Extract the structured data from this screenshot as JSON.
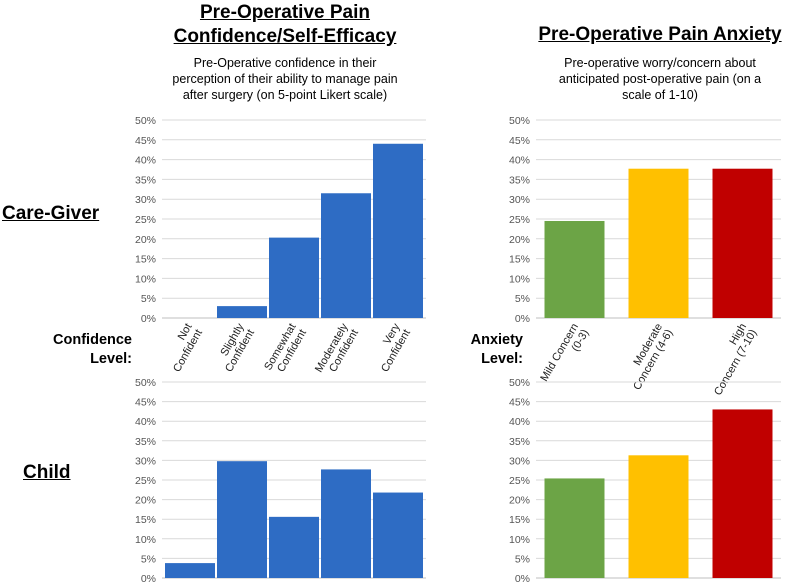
{
  "left_header": {
    "title_line1": "Pre-Operative Pain",
    "title_line2": "Confidence/Self-Efficacy",
    "subtitle_line1": "Pre-Operative confidence in their",
    "subtitle_line2": "perception of their ability to manage pain",
    "subtitle_line3": "after surgery (on 5-point Likert scale)"
  },
  "right_header": {
    "title": "Pre-Operative Pain Anxiety",
    "subtitle_line1": "Pre-operative worry/concern about",
    "subtitle_line2": "anticipated post-operative pain (on a",
    "subtitle_line3": "scale of 1-10)"
  },
  "row_labels": {
    "caregiver": "Care-Giver",
    "child": "Child"
  },
  "axis_labels": {
    "confidence_line1": "Confidence",
    "confidence_line2": "Level:",
    "anxiety_line1": "Anxiety",
    "anxiety_line2": "Level:"
  },
  "colors": {
    "blue": "#2e6cc4",
    "green": "#6ca446",
    "yellow": "#ffc000",
    "red": "#c00000",
    "grid": "#d9d9d9"
  },
  "chart_data": [
    {
      "id": "caregiver-confidence",
      "type": "bar",
      "title": "Care-Giver Pre-Operative Pain Confidence/Self-Efficacy",
      "categories": [
        [
          "Not",
          "Confident"
        ],
        [
          "Slightly",
          "Confident"
        ],
        [
          "Somewhat",
          "Confident"
        ],
        [
          "Moderately",
          "Confident"
        ],
        [
          "Very",
          "Confident"
        ]
      ],
      "values": [
        0,
        3,
        20.3,
        31.5,
        44
      ],
      "ylim": [
        0,
        50
      ],
      "yticks": [
        "0%",
        "5%",
        "10%",
        "15%",
        "20%",
        "25%",
        "30%",
        "35%",
        "40%",
        "45%",
        "50%"
      ],
      "grid": true
    },
    {
      "id": "caregiver-anxiety",
      "type": "bar",
      "title": "Care-Giver Pre-Operative Pain Anxiety",
      "categories": [
        [
          "Mild Concern",
          "(0-3)"
        ],
        [
          "Moderate",
          "Concern (4-6)"
        ],
        [
          "High",
          "Concern (7-10)"
        ]
      ],
      "values": [
        24.5,
        37.7,
        37.7
      ],
      "ylim": [
        0,
        50
      ],
      "yticks": [
        "0%",
        "5%",
        "10%",
        "15%",
        "20%",
        "25%",
        "30%",
        "35%",
        "40%",
        "45%",
        "50%"
      ],
      "grid": true
    },
    {
      "id": "child-confidence",
      "type": "bar",
      "title": "Child Pre-Operative Pain Confidence/Self-Efficacy",
      "categories": [
        [
          "Not",
          "Confident"
        ],
        [
          "Slightly",
          "Confident"
        ],
        [
          "Somewhat",
          "Confident"
        ],
        [
          "Moderately",
          "Confident"
        ],
        [
          "Very",
          "Confident"
        ]
      ],
      "values": [
        3.8,
        29.8,
        15.6,
        27.7,
        21.8
      ],
      "ylim": [
        0,
        50
      ],
      "yticks": [
        "0%",
        "5%",
        "10%",
        "15%",
        "20%",
        "25%",
        "30%",
        "35%",
        "40%",
        "45%",
        "50%"
      ],
      "grid": true
    },
    {
      "id": "child-anxiety",
      "type": "bar",
      "title": "Child Pre-Operative Pain Anxiety",
      "categories": [
        [
          "Mild Concern",
          "(0-3)"
        ],
        [
          "Moderate",
          "Concern (4-6)"
        ],
        [
          "High",
          "Concern (7-10)"
        ]
      ],
      "values": [
        25.4,
        31.3,
        43
      ],
      "ylim": [
        0,
        50
      ],
      "yticks": [
        "0%",
        "5%",
        "10%",
        "15%",
        "20%",
        "25%",
        "30%",
        "35%",
        "40%",
        "45%",
        "50%"
      ],
      "grid": true
    }
  ]
}
